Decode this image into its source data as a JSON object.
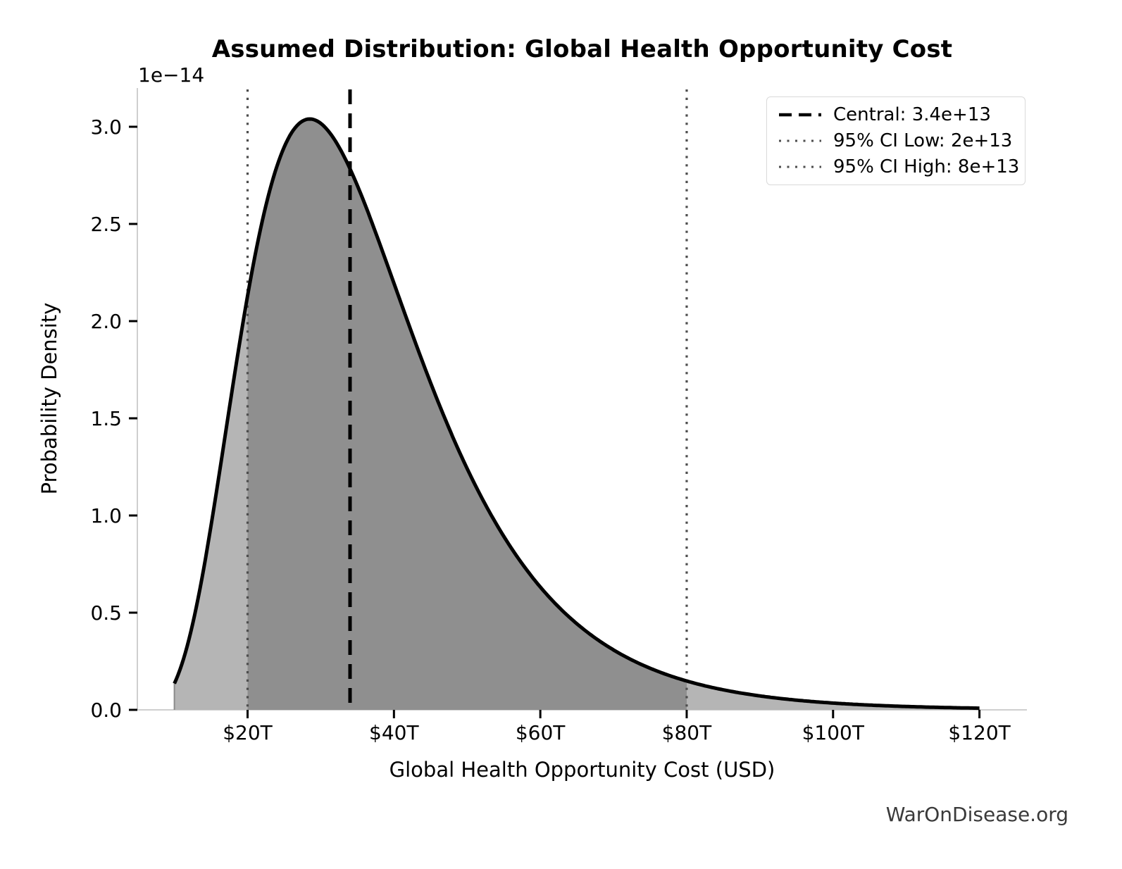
{
  "figure": {
    "watermark": "WarOnDisease.org"
  },
  "chart_data": {
    "type": "area",
    "title": "Assumed Distribution: Global Health Opportunity Cost",
    "xlabel": "Global Health Opportunity Cost (USD)",
    "ylabel": "Probability Density",
    "y_offset_text": "1e−14",
    "x_axis_unit": "trillions USD",
    "y_axis_unit": "probability density × 1e−14",
    "xlim_T": [
      5,
      126
    ],
    "ylim": [
      0.0,
      3.2
    ],
    "grid": false,
    "legend_position": "upper right",
    "x_ticks": [
      {
        "value": 20,
        "label": "$20T"
      },
      {
        "value": 40,
        "label": "$40T"
      },
      {
        "value": 60,
        "label": "$60T"
      },
      {
        "value": 80,
        "label": "$80T"
      },
      {
        "value": 100,
        "label": "$100T"
      },
      {
        "value": 120,
        "label": "$120T"
      }
    ],
    "y_ticks": [
      {
        "value": 0.0,
        "label": "0.0"
      },
      {
        "value": 0.5,
        "label": "0.5"
      },
      {
        "value": 1.0,
        "label": "1.0"
      },
      {
        "value": 1.5,
        "label": "1.5"
      },
      {
        "value": 2.0,
        "label": "2.0"
      },
      {
        "value": 2.5,
        "label": "2.5"
      },
      {
        "value": 3.0,
        "label": "3.0"
      }
    ],
    "distribution": {
      "type": "lognormal",
      "median_usd": 34000000000000.0,
      "sigma_ln": 0.42,
      "peak_density": 3.04e-14,
      "mode_usd_T": 28.5,
      "curve_range_T": [
        10,
        120
      ]
    },
    "central": {
      "value_usd": 34000000000000.0,
      "value_T": 34
    },
    "ci_low": {
      "value_usd": 20000000000000.0,
      "value_T": 20
    },
    "ci_high": {
      "value_usd": 80000000000000.0,
      "value_T": 80
    },
    "legend": [
      {
        "label": "Central: 3.4e+13",
        "style": "dashed",
        "color": "#000000"
      },
      {
        "label": "95% CI Low: 2e+13",
        "style": "dotted",
        "color": "#4d4d4d"
      },
      {
        "label": "95% CI High: 8e+13",
        "style": "dotted",
        "color": "#4d4d4d"
      }
    ],
    "fill_regions": [
      {
        "from_T": 10,
        "to_T": 20,
        "color": "#b5b5b5",
        "meaning": "below 95% CI"
      },
      {
        "from_T": 20,
        "to_T": 80,
        "color": "#8f8f8f",
        "meaning": "inside 95% CI"
      },
      {
        "from_T": 80,
        "to_T": 120,
        "color": "#b5b5b5",
        "meaning": "above 95% CI"
      }
    ],
    "curve_points_T_density1e14": [
      [
        10,
        0.14
      ],
      [
        12,
        0.36
      ],
      [
        14,
        0.73
      ],
      [
        16,
        1.18
      ],
      [
        18,
        1.67
      ],
      [
        20,
        2.13
      ],
      [
        22,
        2.51
      ],
      [
        24,
        2.8
      ],
      [
        26,
        2.97
      ],
      [
        28,
        3.04
      ],
      [
        30,
        3.02
      ],
      [
        32,
        2.93
      ],
      [
        34,
        2.78
      ],
      [
        36,
        2.6
      ],
      [
        38,
        2.4
      ],
      [
        40,
        2.2
      ],
      [
        44,
        1.78
      ],
      [
        48,
        1.41
      ],
      [
        52,
        1.09
      ],
      [
        56,
        0.83
      ],
      [
        60,
        0.63
      ],
      [
        65,
        0.44
      ],
      [
        70,
        0.31
      ],
      [
        75,
        0.21
      ],
      [
        80,
        0.15
      ],
      [
        85,
        0.1
      ],
      [
        90,
        0.07
      ],
      [
        95,
        0.05
      ],
      [
        100,
        0.035
      ],
      [
        105,
        0.025
      ],
      [
        110,
        0.017
      ],
      [
        115,
        0.012
      ],
      [
        120,
        0.009
      ]
    ],
    "colors": {
      "curve": "#000000",
      "central_line": "#000000",
      "ci_line": "#4d4d4d",
      "spine": "#cfcfcf",
      "tick": "#000000",
      "fill_light": "#b5b5b5",
      "fill_dark": "#8f8f8f"
    }
  }
}
